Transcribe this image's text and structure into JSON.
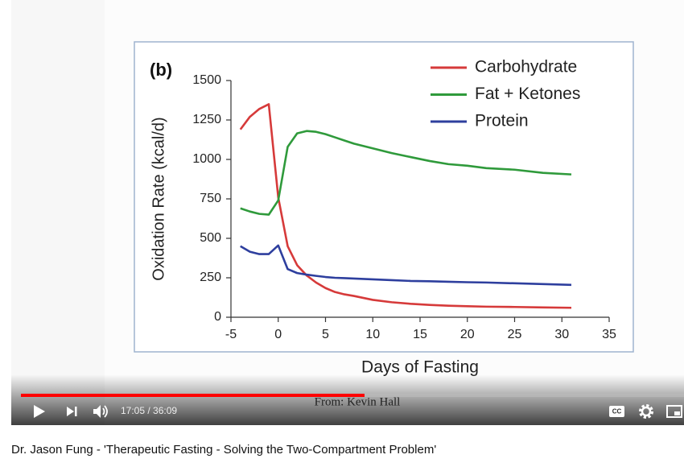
{
  "chart_data": {
    "type": "line",
    "panel_label": "(b)",
    "x_label": "Days of Fasting",
    "y_label": "Oxidation Rate (kcal/d)",
    "credit": "From: Kevin Hall",
    "x": [
      -4,
      -3,
      -2,
      -1,
      0,
      1,
      2,
      3,
      4,
      5,
      6,
      7,
      8,
      10,
      12,
      14,
      16,
      18,
      20,
      22,
      25,
      28,
      31
    ],
    "series": [
      {
        "name": "Carbohydrate",
        "color": "#d63a3a",
        "values": [
          1190,
          1270,
          1320,
          1350,
          760,
          450,
          330,
          265,
          220,
          185,
          160,
          145,
          135,
          110,
          95,
          85,
          78,
          73,
          70,
          67,
          65,
          62,
          60
        ]
      },
      {
        "name": "Fat + Ketones",
        "color": "#2f9a3b",
        "values": [
          690,
          670,
          655,
          650,
          740,
          1080,
          1165,
          1180,
          1175,
          1160,
          1140,
          1120,
          1100,
          1070,
          1040,
          1015,
          990,
          970,
          960,
          945,
          935,
          915,
          905
        ]
      },
      {
        "name": "Protein",
        "color": "#2e3f9e",
        "values": [
          450,
          415,
          400,
          400,
          455,
          305,
          280,
          270,
          262,
          255,
          250,
          248,
          245,
          240,
          235,
          230,
          228,
          225,
          222,
          220,
          215,
          210,
          205
        ]
      }
    ],
    "xlim": [
      -5,
      35
    ],
    "xticks": [
      -5,
      0,
      5,
      10,
      15,
      20,
      25,
      30,
      35
    ],
    "ylim": [
      0,
      1500
    ],
    "yticks": [
      0,
      250,
      500,
      750,
      1000,
      1250,
      1500
    ]
  },
  "player": {
    "time": "17:05 / 36:09"
  },
  "video_title": "Dr. Jason Fung - 'Therapeutic Fasting - Solving the Two-Compartment Problem'"
}
